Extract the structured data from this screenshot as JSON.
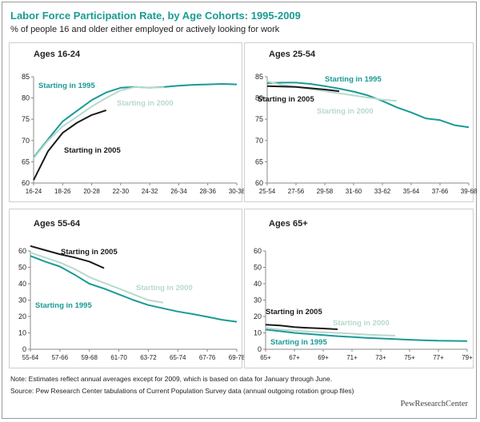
{
  "title": "Labor Force Participation Rate, by Age Cohorts: 1995-2009",
  "subtitle": "% of people 16 and older either employed or actively looking for work",
  "note": "Note: Estimates reflect annual averages except for 2009, which is based on data for January through June.",
  "source": "Source: Pew Research Center tabulations of Current Population Survey data (annual outgoing rotation group files)",
  "logo": "PewResearchCenter",
  "colors": {
    "c1995": "#1a9a96",
    "c2000": "#b7d9cc",
    "c2005": "#1a1a1a",
    "title": "#1a9c93"
  },
  "chart_data": [
    {
      "type": "line",
      "title": "Ages 16-24",
      "categories": [
        "16-24",
        "18-26",
        "20-28",
        "22-30",
        "24-32",
        "26-34",
        "28-36",
        "30-38"
      ],
      "ylim": [
        60,
        85
      ],
      "yticks": [
        60,
        65,
        70,
        75,
        80,
        85
      ],
      "series": [
        {
          "name": "Starting in 1995",
          "color": "#1a9a96",
          "x": [
            0,
            0.5,
            1,
            1.5,
            2,
            2.5,
            3,
            3.5,
            4,
            4.5,
            5,
            5.5,
            6,
            6.5,
            7
          ],
          "values": [
            66,
            70.3,
            74.5,
            77,
            79.5,
            81.3,
            82.4,
            82.6,
            82.4,
            82.6,
            82.9,
            83.1,
            83.2,
            83.3,
            83.2
          ]
        },
        {
          "name": "Starting in 2000",
          "color": "#b7d9cc",
          "x": [
            0,
            0.5,
            1,
            1.5,
            2,
            2.5,
            3,
            3.5,
            4,
            4.5
          ],
          "values": [
            65.8,
            70,
            73.3,
            75.6,
            78,
            80,
            81.8,
            82.6,
            82.4,
            82.5
          ]
        },
        {
          "name": "Starting in 2005",
          "color": "#1a1a1a",
          "x": [
            0,
            0.5,
            1,
            1.5,
            2,
            2.5
          ],
          "values": [
            60.7,
            67.5,
            71.8,
            74.2,
            76,
            77.1
          ]
        }
      ],
      "labels": [
        {
          "text": "Starting in 1995",
          "color": "#1a9a96"
        },
        {
          "text": "Starting in 2000",
          "color": "#b7d9cc"
        },
        {
          "text": "Starting in 2005",
          "color": "#1a1a1a"
        }
      ]
    },
    {
      "type": "line",
      "title": "Ages 25-54",
      "categories": [
        "25-54",
        "27-56",
        "29-58",
        "31-60",
        "33-62",
        "35-64",
        "37-66",
        "39-68"
      ],
      "ylim": [
        60,
        85
      ],
      "yticks": [
        60,
        65,
        70,
        75,
        80,
        85
      ],
      "series": [
        {
          "name": "Starting in 1995",
          "color": "#1a9a96",
          "x": [
            0,
            0.5,
            1,
            1.5,
            2,
            2.5,
            3,
            3.5,
            4,
            4.5,
            5,
            5.5,
            6,
            6.5,
            7
          ],
          "values": [
            83.5,
            83.6,
            83.6,
            83.3,
            82.8,
            82.2,
            81.5,
            80.6,
            79.3,
            77.8,
            76.6,
            75.2,
            74.8,
            73.6,
            73.1
          ]
        },
        {
          "name": "Starting in 2000",
          "color": "#b7d9cc",
          "x": [
            0,
            0.5,
            1,
            1.5,
            2,
            2.5,
            3,
            3.5,
            4,
            4.5
          ],
          "values": [
            83.9,
            83.1,
            82.6,
            82.1,
            81.6,
            81.1,
            80.6,
            80.1,
            79.6,
            79.3
          ]
        },
        {
          "name": "Starting in 2005",
          "color": "#1a1a1a",
          "x": [
            0,
            0.5,
            1,
            1.5,
            2,
            2.5
          ],
          "values": [
            82.8,
            82.7,
            82.6,
            82.3,
            82,
            81.6
          ]
        }
      ],
      "labels": [
        {
          "text": "Starting in 1995",
          "color": "#1a9a96"
        },
        {
          "text": "Starting in 2000",
          "color": "#b7d9cc"
        },
        {
          "text": "Starting in 2005",
          "color": "#1a1a1a"
        }
      ]
    },
    {
      "type": "line",
      "title": "Ages 55-64",
      "categories": [
        "55-64",
        "57-66",
        "59-68",
        "61-70",
        "63-72",
        "65-74",
        "67-76",
        "69-78"
      ],
      "ylim": [
        0,
        60
      ],
      "yticks": [
        0,
        10,
        20,
        30,
        40,
        50,
        60
      ],
      "series": [
        {
          "name": "Starting in 1995",
          "color": "#1a9a96",
          "x": [
            0,
            0.5,
            1,
            1.5,
            2,
            2.5,
            3,
            3.5,
            4,
            4.5,
            5,
            5.5,
            6,
            6.5,
            7
          ],
          "values": [
            57,
            53.5,
            50.5,
            45.5,
            40,
            37,
            33.5,
            30,
            27,
            25,
            23,
            21.5,
            19.8,
            18,
            16.8
          ]
        },
        {
          "name": "Starting in 2000",
          "color": "#b7d9cc",
          "x": [
            0,
            0.5,
            1,
            1.5,
            2,
            2.5,
            3,
            3.5,
            4,
            4.5
          ],
          "values": [
            59,
            56,
            53,
            49,
            44,
            40.5,
            37,
            33.5,
            30,
            28.5
          ]
        },
        {
          "name": "Starting in 2005",
          "color": "#1a1a1a",
          "x": [
            0,
            0.5,
            1,
            1.5,
            2,
            2.5
          ],
          "values": [
            63,
            60.5,
            58,
            56,
            53.5,
            49.5
          ]
        }
      ],
      "labels": [
        {
          "text": "Starting in 1995",
          "color": "#1a9a96"
        },
        {
          "text": "Starting in 2000",
          "color": "#b7d9cc"
        },
        {
          "text": "Starting in 2005",
          "color": "#1a1a1a"
        }
      ]
    },
    {
      "type": "line",
      "title": "Ages 65+",
      "categories": [
        "65+",
        "67+",
        "69+",
        "71+",
        "73+",
        "75+",
        "77+",
        "79+"
      ],
      "ylim": [
        0,
        60
      ],
      "yticks": [
        0,
        10,
        20,
        30,
        40,
        50,
        60
      ],
      "series": [
        {
          "name": "Starting in 1995",
          "color": "#1a9a96",
          "x": [
            0,
            0.5,
            1,
            1.5,
            2,
            2.5,
            3,
            3.5,
            4,
            4.5,
            5,
            5.5,
            6,
            6.5,
            7
          ],
          "values": [
            12,
            11,
            10,
            9.3,
            8.7,
            8,
            7.5,
            7,
            6.6,
            6.2,
            5.8,
            5.5,
            5.2,
            5.1,
            5
          ]
        },
        {
          "name": "Starting in 2000",
          "color": "#b7d9cc",
          "x": [
            0,
            0.5,
            1,
            1.5,
            2,
            2.5,
            3,
            3.5,
            4,
            4.5
          ],
          "values": [
            13,
            12,
            11.3,
            10.8,
            10.4,
            10,
            9.5,
            9,
            8.6,
            8.3
          ]
        },
        {
          "name": "Starting in 2005",
          "color": "#1a1a1a",
          "x": [
            0,
            0.5,
            1,
            1.5,
            2,
            2.5
          ],
          "values": [
            15,
            14.5,
            13.5,
            13,
            12.7,
            12.2
          ]
        }
      ],
      "labels": [
        {
          "text": "Starting in 2005",
          "color": "#1a1a1a"
        },
        {
          "text": "Starting in 2000",
          "color": "#b7d9cc"
        },
        {
          "text": "Starting in 1995",
          "color": "#1a9a96"
        }
      ]
    }
  ]
}
